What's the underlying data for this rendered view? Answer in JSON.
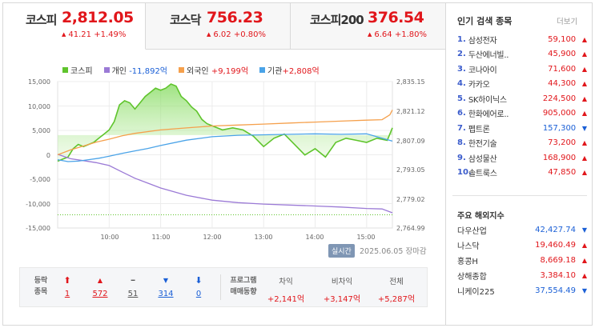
{
  "tabs": [
    {
      "name": "코스피",
      "value": "2,812.05",
      "change": "41.21 +1.49%",
      "active": true
    },
    {
      "name": "코스닥",
      "value": "756.23",
      "change": "6.02 +0.80%",
      "active": false
    },
    {
      "name": "코스피200",
      "value": "376.54",
      "change": "6.64 +1.80%",
      "active": false
    }
  ],
  "legend": [
    {
      "label": "코스피",
      "color": "#5fc42c"
    },
    {
      "label": "개인",
      "value": "-11,892억",
      "color": "#9b7ad6",
      "value_color": "#1a5fd6"
    },
    {
      "label": "외국인",
      "value": "+9,199억",
      "color": "#f5a04c",
      "value_color": "#e1161b"
    },
    {
      "label": "기관",
      "value": "+2,808억",
      "color": "#4aa3e8",
      "value_color": "#e1161b"
    }
  ],
  "chart_data": {
    "type": "line",
    "x_ticks": [
      "10:00",
      "11:00",
      "12:00",
      "13:00",
      "14:00",
      "15:00"
    ],
    "y_left_ticks": [
      "15,000",
      "10,000",
      "5,000",
      "0",
      "-5,000",
      "-10,000",
      "-15,000"
    ],
    "y_right_ticks": [
      "2,835.15",
      "2,821.12",
      "2,807.09",
      "2,793.05",
      "2,779.02",
      "2,764.99"
    ],
    "ylim_left": [
      -15000,
      15000
    ],
    "ylim_right": [
      2764.99,
      2835.15
    ],
    "series": [
      {
        "name": "코스피",
        "axis": "right",
        "color": "#5fc42c",
        "x": [
          9.0,
          9.1,
          9.2,
          9.3,
          9.4,
          9.5,
          9.6,
          9.7,
          9.8,
          9.9,
          10.0,
          10.1,
          10.2,
          10.3,
          10.4,
          10.5,
          10.6,
          10.7,
          10.8,
          10.9,
          11.0,
          11.1,
          11.2,
          11.3,
          11.4,
          11.5,
          11.6,
          11.7,
          11.8,
          11.9,
          12.0,
          12.2,
          12.4,
          12.6,
          12.8,
          13.0,
          13.2,
          13.4,
          13.6,
          13.8,
          14.0,
          14.2,
          14.4,
          14.6,
          14.8,
          15.0,
          15.2,
          15.4,
          15.5
        ],
        "y": [
          2797,
          2798,
          2799,
          2803,
          2805,
          2804,
          2805,
          2806,
          2808,
          2810,
          2812,
          2816,
          2824,
          2826,
          2825,
          2822,
          2825,
          2828,
          2830,
          2832,
          2831,
          2832,
          2834,
          2833,
          2828,
          2826,
          2823,
          2821,
          2817,
          2815,
          2814,
          2812,
          2813,
          2812,
          2809,
          2804,
          2808,
          2810,
          2805,
          2800,
          2803,
          2799,
          2806,
          2808,
          2807,
          2806,
          2808,
          2807,
          2813
        ]
      },
      {
        "name": "개인",
        "axis": "left",
        "color": "#9b7ad6",
        "x": [
          9.0,
          9.25,
          9.5,
          9.75,
          10.0,
          10.25,
          10.5,
          10.75,
          11.0,
          11.5,
          12.0,
          12.5,
          13.0,
          13.5,
          14.0,
          14.5,
          15.0,
          15.3,
          15.5
        ],
        "y": [
          100,
          -800,
          -1200,
          -1600,
          -2200,
          -3500,
          -4800,
          -5800,
          -6800,
          -8300,
          -9300,
          -9800,
          -10100,
          -10300,
          -10500,
          -10700,
          -11000,
          -11100,
          -11892
        ]
      },
      {
        "name": "외국인",
        "axis": "left",
        "color": "#f5a04c",
        "x": [
          9.0,
          9.25,
          9.5,
          9.75,
          10.0,
          10.25,
          10.5,
          11.0,
          11.5,
          12.0,
          12.5,
          13.0,
          13.5,
          14.0,
          14.5,
          15.0,
          15.3,
          15.45,
          15.5
        ],
        "y": [
          0,
          1000,
          1800,
          2600,
          3200,
          3900,
          4400,
          5100,
          5500,
          5900,
          6100,
          6300,
          6500,
          6700,
          6900,
          7100,
          7200,
          8200,
          9199
        ]
      },
      {
        "name": "기관",
        "axis": "left",
        "color": "#4aa3e8",
        "x": [
          9.0,
          9.2,
          9.4,
          9.6,
          9.8,
          10.0,
          10.25,
          10.5,
          10.75,
          11.0,
          11.5,
          12.0,
          12.5,
          13.0,
          13.5,
          14.0,
          14.5,
          15.0,
          15.5
        ],
        "y": [
          -1000,
          -1400,
          -1300,
          -1000,
          -700,
          -300,
          300,
          800,
          1300,
          1900,
          3000,
          3700,
          4000,
          4100,
          4200,
          4300,
          4200,
          4300,
          2808
        ]
      }
    ]
  },
  "footer": {
    "realtime": "실시간",
    "date": "2025.06.05",
    "status": "장마감"
  },
  "stats": {
    "label_lines": [
      "등락",
      "종목"
    ],
    "items": [
      {
        "icon": "⬆",
        "value": "1",
        "color": "red",
        "icon_name": "upper-limit-icon"
      },
      {
        "icon": "▲",
        "value": "572",
        "color": "red",
        "icon_name": "rise-icon"
      },
      {
        "icon": "━",
        "value": "51",
        "color": "gray",
        "icon_name": "flat-icon"
      },
      {
        "icon": "▼",
        "value": "314",
        "color": "blue",
        "icon_name": "fall-icon"
      },
      {
        "icon": "⬇",
        "value": "0",
        "color": "blue",
        "icon_name": "lower-limit-icon"
      }
    ],
    "program_label_lines": [
      "프로그램",
      "매매동향"
    ],
    "program": [
      {
        "header": "차익",
        "value": "+2,141억"
      },
      {
        "header": "비차익",
        "value": "+3,147억"
      },
      {
        "header": "전체",
        "value": "+5,287억"
      }
    ]
  },
  "popular": {
    "title": "인기 검색 종목",
    "more": "더보기",
    "items": [
      {
        "rank": "1.",
        "name": "삼성전자",
        "price": "59,100",
        "dir": "up"
      },
      {
        "rank": "2.",
        "name": "두산에너빌..",
        "price": "45,900",
        "dir": "up"
      },
      {
        "rank": "3.",
        "name": "코나아이",
        "price": "71,600",
        "dir": "up"
      },
      {
        "rank": "4.",
        "name": "카카오",
        "price": "44,300",
        "dir": "up"
      },
      {
        "rank": "5.",
        "name": "SK하이닉스",
        "price": "224,500",
        "dir": "up"
      },
      {
        "rank": "6.",
        "name": "한화에어로..",
        "price": "905,000",
        "dir": "up"
      },
      {
        "rank": "7.",
        "name": "펩트론",
        "price": "157,300",
        "dir": "down"
      },
      {
        "rank": "8.",
        "name": "한전기술",
        "price": "73,200",
        "dir": "up"
      },
      {
        "rank": "9.",
        "name": "삼성물산",
        "price": "168,900",
        "dir": "up"
      },
      {
        "rank": "10.",
        "name": "솔트룩스",
        "price": "47,850",
        "dir": "up"
      }
    ]
  },
  "global": {
    "title": "주요 해외지수",
    "items": [
      {
        "name": "다우산업",
        "value": "42,427.74",
        "dir": "down"
      },
      {
        "name": "나스닥",
        "value": "19,460.49",
        "dir": "up"
      },
      {
        "name": "홍콩H",
        "value": "8,669.18",
        "dir": "up"
      },
      {
        "name": "상해종합",
        "value": "3,384.10",
        "dir": "up"
      },
      {
        "name": "니케이225",
        "value": "37,554.49",
        "dir": "down"
      }
    ]
  },
  "colors": {
    "up": "#e1161b",
    "down": "#1a5fd6",
    "rank_number": "#3b5ccc"
  }
}
